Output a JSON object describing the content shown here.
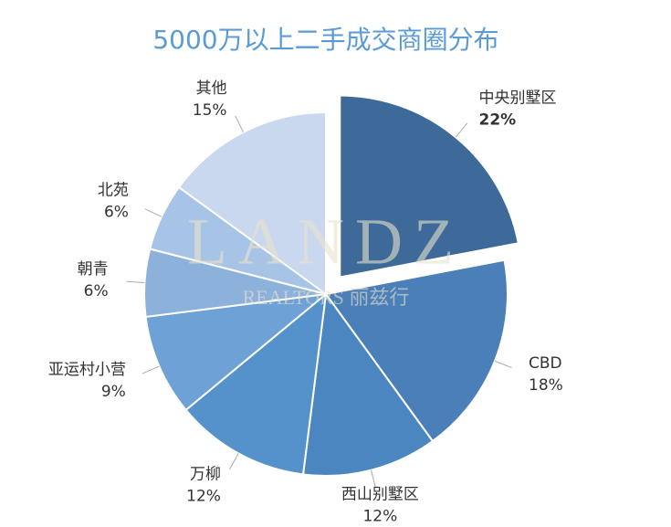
{
  "chart_data": {
    "type": "pie",
    "title": "5000万以上二手成交商圈分布",
    "categories": [
      "中央别墅区",
      "CBD",
      "西山别墅区",
      "万柳",
      "亚运村小营",
      "朝青",
      "北苑",
      "其他"
    ],
    "values": [
      22,
      18,
      12,
      12,
      9,
      6,
      6,
      15
    ],
    "value_labels": [
      "22%",
      "18%",
      "12%",
      "12%",
      "9%",
      "6%",
      "6%",
      "15%"
    ],
    "colors": [
      "#3d6a99",
      "#4a7fb8",
      "#4b86c0",
      "#5592cb",
      "#6ea1d5",
      "#8cb2dc",
      "#a7c4e6",
      "#c9d8ee"
    ],
    "watermark": [
      "LANDZ",
      "REALTORS 丽兹行"
    ]
  }
}
